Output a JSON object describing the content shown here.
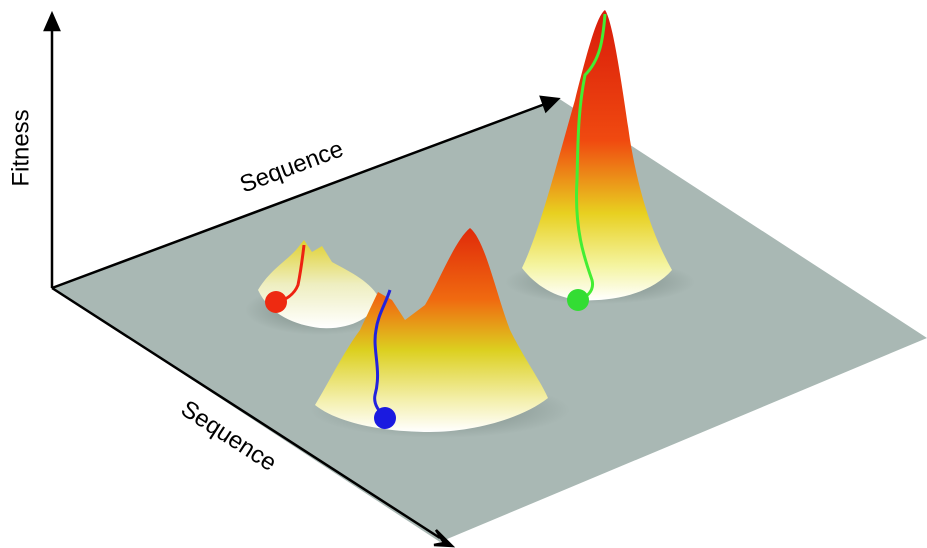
{
  "axes": {
    "vertical": "Fitness",
    "back": "Sequence",
    "front": "Sequence"
  }
}
